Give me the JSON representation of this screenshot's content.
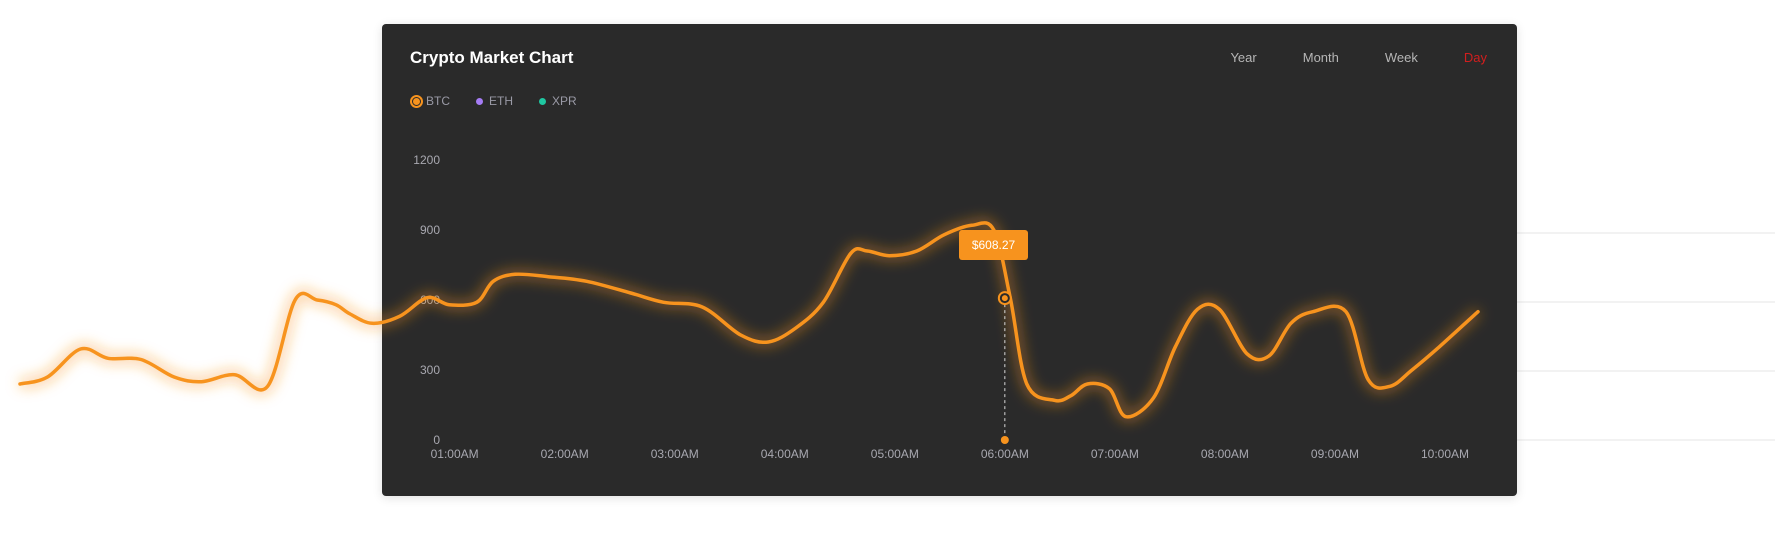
{
  "chart_data": {
    "type": "line",
    "title": "Crypto Market Chart",
    "period_options": [
      "Year",
      "Month",
      "Week",
      "Day"
    ],
    "active_period": "Day",
    "legend": [
      {
        "name": "BTC",
        "color": "#f7931e",
        "selected": true
      },
      {
        "name": "ETH",
        "color": "#a57cf5",
        "selected": false
      },
      {
        "name": "XPR",
        "color": "#1fc7a1",
        "selected": false
      }
    ],
    "y_ticks": [
      0,
      300,
      600,
      900,
      1200
    ],
    "ylim": [
      0,
      1200
    ],
    "x_tick_labels": [
      "01:00AM",
      "02:00AM",
      "03:00AM",
      "04:00AM",
      "05:00AM",
      "06:00AM",
      "07:00AM",
      "08:00AM",
      "09:00AM",
      "10:00AM"
    ],
    "xlim": [
      -2.95,
      10.3
    ],
    "series": [
      {
        "name": "BTC",
        "color": "#f7931e",
        "x": [
          -2.95,
          -2.7,
          -2.4,
          -2.15,
          -1.85,
          -1.55,
          -1.3,
          -1.0,
          -0.7,
          -0.45,
          -0.25,
          -0.08,
          0.05,
          0.25,
          0.5,
          0.75,
          0.95,
          1.2,
          1.35,
          1.55,
          1.85,
          2.2,
          2.6,
          2.9,
          3.25,
          3.6,
          3.85,
          4.1,
          4.35,
          4.6,
          4.75,
          4.95,
          5.2,
          5.45,
          5.7,
          5.9,
          6.05,
          6.2,
          6.45,
          6.6,
          6.75,
          6.95,
          7.1,
          7.35,
          7.55,
          7.75,
          7.95,
          8.2,
          8.4,
          8.6,
          8.8,
          9.1,
          9.3,
          9.5,
          9.7,
          9.95,
          10.3
        ],
        "y": [
          240,
          270,
          390,
          350,
          345,
          270,
          250,
          280,
          230,
          600,
          600,
          580,
          540,
          500,
          530,
          610,
          580,
          590,
          680,
          710,
          700,
          680,
          630,
          590,
          570,
          450,
          420,
          480,
          590,
          800,
          810,
          790,
          810,
          880,
          920,
          900,
          608,
          240,
          170,
          190,
          240,
          220,
          100,
          180,
          400,
          560,
          560,
          370,
          360,
          500,
          550,
          550,
          260,
          230,
          300,
          400,
          550
        ]
      }
    ],
    "tooltip": {
      "x": 6.0,
      "y": 608.27,
      "label": "$608.27"
    }
  }
}
